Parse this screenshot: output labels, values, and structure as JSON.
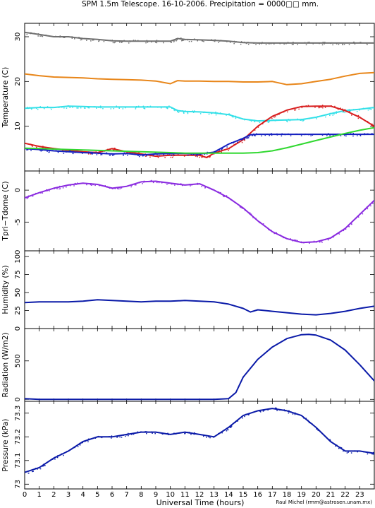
{
  "title": "SPM 1.5m Telescope. 16-10-2006. Precipitation = 0000□□ mm.",
  "credit": "Raul Michel (rmm@astrosen.unam.mx)",
  "colors": {
    "gray": "#707070",
    "orange": "#e8861a",
    "cyan": "#33e0e8",
    "red": "#d81e1e",
    "blue": "#1520c0",
    "green": "#30d830",
    "purple": "#8a2be0",
    "navy": "#0a1aa8"
  },
  "chart_data": {
    "x_axis": {
      "label": "Universal Time (hours)",
      "range": [
        0,
        24
      ],
      "ticks": [
        0,
        1,
        2,
        3,
        4,
        5,
        6,
        7,
        8,
        9,
        10,
        11,
        12,
        13,
        14,
        15,
        16,
        17,
        18,
        19,
        20,
        21,
        22,
        23
      ]
    },
    "panels": [
      {
        "type": "line",
        "ylabel": "Temperature (C)",
        "ylim": [
          0,
          33
        ],
        "yticks": [
          10,
          20,
          30
        ],
        "series": [
          {
            "color": "gray",
            "dotted": true,
            "x": [
              0,
              1,
              2,
              3,
              4,
              5,
              6,
              7,
              8,
              9,
              10,
              10.5,
              11,
              12,
              13,
              14,
              15,
              16,
              17,
              18,
              19,
              20,
              21,
              22,
              23,
              24
            ],
            "y": [
              31,
              30.5,
              30,
              30,
              29.6,
              29.4,
              29.1,
              29,
              29,
              29,
              29,
              29.6,
              29.4,
              29.3,
              29.2,
              29,
              28.7,
              28.6,
              28.6,
              28.6,
              28.6,
              28.6,
              28.6,
              28.6,
              28.6,
              28.6
            ]
          },
          {
            "color": "orange",
            "dotted": false,
            "x": [
              0,
              1,
              2,
              3,
              4,
              5,
              6,
              7,
              8,
              9,
              10,
              10.5,
              11,
              12,
              13,
              14,
              15,
              16,
              17,
              18,
              19,
              20,
              21,
              22,
              23,
              24
            ],
            "y": [
              21.7,
              21.3,
              21,
              20.9,
              20.8,
              20.6,
              20.5,
              20.4,
              20.3,
              20.1,
              19.5,
              20.2,
              20.1,
              20.1,
              20,
              20,
              19.9,
              19.9,
              20,
              19.3,
              19.5,
              20,
              20.5,
              21.2,
              21.8,
              22
            ]
          },
          {
            "color": "cyan",
            "dotted": true,
            "x": [
              0,
              1,
              2,
              3,
              4,
              5,
              6,
              7,
              8,
              9,
              10,
              10.5,
              11,
              12,
              13,
              14,
              15,
              16,
              17,
              18,
              19,
              20,
              21,
              22,
              23,
              24
            ],
            "y": [
              14,
              14.2,
              14.2,
              14.5,
              14.4,
              14.3,
              14.3,
              14.3,
              14.3,
              14.3,
              14.3,
              13.5,
              13.3,
              13.2,
              13,
              12.6,
              11.6,
              11.2,
              11.3,
              11.4,
              11.5,
              12,
              12.8,
              13.5,
              13.8,
              14.2
            ]
          },
          {
            "color": "red",
            "dotted": true,
            "x": [
              0,
              1,
              2,
              3,
              4,
              5,
              6,
              7,
              8,
              9,
              10,
              11,
              12,
              12.5,
              13,
              14,
              15,
              16,
              17,
              18,
              19,
              20,
              21,
              22,
              23,
              24
            ],
            "y": [
              6.2,
              5.5,
              5,
              4.6,
              4.3,
              4.1,
              5,
              4.3,
              3.8,
              3.3,
              3.5,
              3.5,
              3.5,
              3,
              4,
              5,
              7,
              10,
              12.2,
              13.6,
              14.4,
              14.5,
              14.5,
              13.5,
              12,
              10
            ]
          },
          {
            "color": "blue",
            "dotted": true,
            "x": [
              0,
              1,
              2,
              3,
              4,
              5,
              6,
              7,
              8,
              9,
              10,
              11,
              12,
              13,
              14,
              15,
              15.5,
              16,
              17,
              18,
              19,
              20,
              21,
              22,
              23,
              24
            ],
            "y": [
              5,
              4.8,
              4.5,
              4.3,
              4.1,
              4,
              3.8,
              3.9,
              3.6,
              3.8,
              3.9,
              3.9,
              3.8,
              4.2,
              6,
              7.3,
              8.1,
              8.2,
              8.2,
              8.2,
              8.2,
              8.2,
              8.2,
              8.2,
              8.2,
              8.2
            ]
          },
          {
            "color": "green",
            "dotted": false,
            "x": [
              0,
              1,
              2,
              3,
              4,
              5,
              6,
              7,
              8,
              9,
              10,
              11,
              12,
              13,
              14,
              15,
              16,
              17,
              18,
              19,
              20,
              21,
              22,
              23,
              24
            ],
            "y": [
              5.1,
              5,
              4.9,
              4.8,
              4.7,
              4.6,
              4.5,
              4.4,
              4.3,
              4.2,
              4.1,
              4,
              4,
              4,
              4,
              4,
              4.1,
              4.5,
              5.2,
              6,
              6.8,
              7.6,
              8.4,
              9.1,
              9.7
            ]
          }
        ]
      },
      {
        "type": "line",
        "ylabel": "Tpri−Tdome (C)",
        "ylim": [
          -9.5,
          3
        ],
        "yticks": [
          -5,
          0
        ],
        "series": [
          {
            "color": "purple",
            "dotted": true,
            "x": [
              0,
              1,
              2,
              3,
              4,
              5,
              6,
              7,
              8,
              9,
              10,
              11,
              12,
              13,
              14,
              15,
              16,
              17,
              18,
              19,
              20,
              21,
              22,
              23,
              24
            ],
            "y": [
              -1.2,
              -0.4,
              0.3,
              0.8,
              1.1,
              0.9,
              0.3,
              0.6,
              1.3,
              1.4,
              1.1,
              0.8,
              1,
              0,
              -1.2,
              -2.8,
              -4.8,
              -6.5,
              -7.6,
              -8.2,
              -8.1,
              -7.5,
              -6,
              -3.8,
              -1.6
            ]
          }
        ]
      },
      {
        "type": "line",
        "ylabel": "Humidity (%)",
        "ylim": [
          0,
          108
        ],
        "yticks": [
          0,
          25,
          50,
          75,
          100
        ],
        "series": [
          {
            "color": "navy",
            "dotted": false,
            "x": [
              0,
              1,
              2,
              3,
              4,
              5,
              6,
              7,
              8,
              9,
              10,
              11,
              12,
              13,
              14,
              15,
              15.5,
              16,
              17,
              18,
              19,
              20,
              21,
              22,
              23,
              24
            ],
            "y": [
              36,
              37,
              37,
              37,
              38,
              40,
              39,
              38,
              37,
              38,
              38,
              39,
              38,
              37,
              34,
              28,
              23,
              26,
              24,
              22,
              20,
              19,
              21,
              24,
              28,
              31
            ]
          }
        ]
      },
      {
        "type": "line",
        "ylabel": "Radiation (W/m2)",
        "ylim": [
          -25,
          920
        ],
        "yticks": [
          0,
          500
        ],
        "series": [
          {
            "color": "navy",
            "dotted": false,
            "x": [
              0,
              1,
              2,
              3,
              4,
              5,
              6,
              7,
              8,
              9,
              10,
              11,
              12,
              13,
              14,
              14.5,
              15,
              16,
              17,
              18,
              19,
              19.5,
              20,
              21,
              22,
              23,
              24
            ],
            "y": [
              10,
              0,
              0,
              0,
              0,
              0,
              0,
              0,
              0,
              0,
              0,
              0,
              0,
              0,
              10,
              90,
              290,
              520,
              680,
              790,
              840,
              845,
              835,
              770,
              640,
              450,
              240
            ]
          }
        ]
      },
      {
        "type": "scatter",
        "ylabel": "Pressure (kPa)",
        "ylim": [
          72.98,
          73.35
        ],
        "yticks": [
          73,
          73.1,
          73.2,
          73.3
        ],
        "ytick_labels": [
          "73",
          "73.1",
          "73.2",
          "73.3"
        ],
        "series": [
          {
            "color": "navy",
            "dotted": true,
            "x": [
              0,
              1,
              2,
              3,
              4,
              5,
              6,
              7,
              8,
              9,
              10,
              11,
              12,
              13,
              14,
              15,
              16,
              17,
              18,
              19,
              20,
              21,
              22,
              23,
              24
            ],
            "y": [
              73.05,
              73.07,
              73.11,
              73.14,
              73.18,
              73.2,
              73.2,
              73.21,
              73.22,
              73.22,
              73.21,
              73.22,
              73.21,
              73.2,
              73.24,
              73.29,
              73.31,
              73.32,
              73.31,
              73.29,
              73.24,
              73.18,
              73.14,
              73.14,
              73.13
            ]
          }
        ]
      }
    ]
  }
}
